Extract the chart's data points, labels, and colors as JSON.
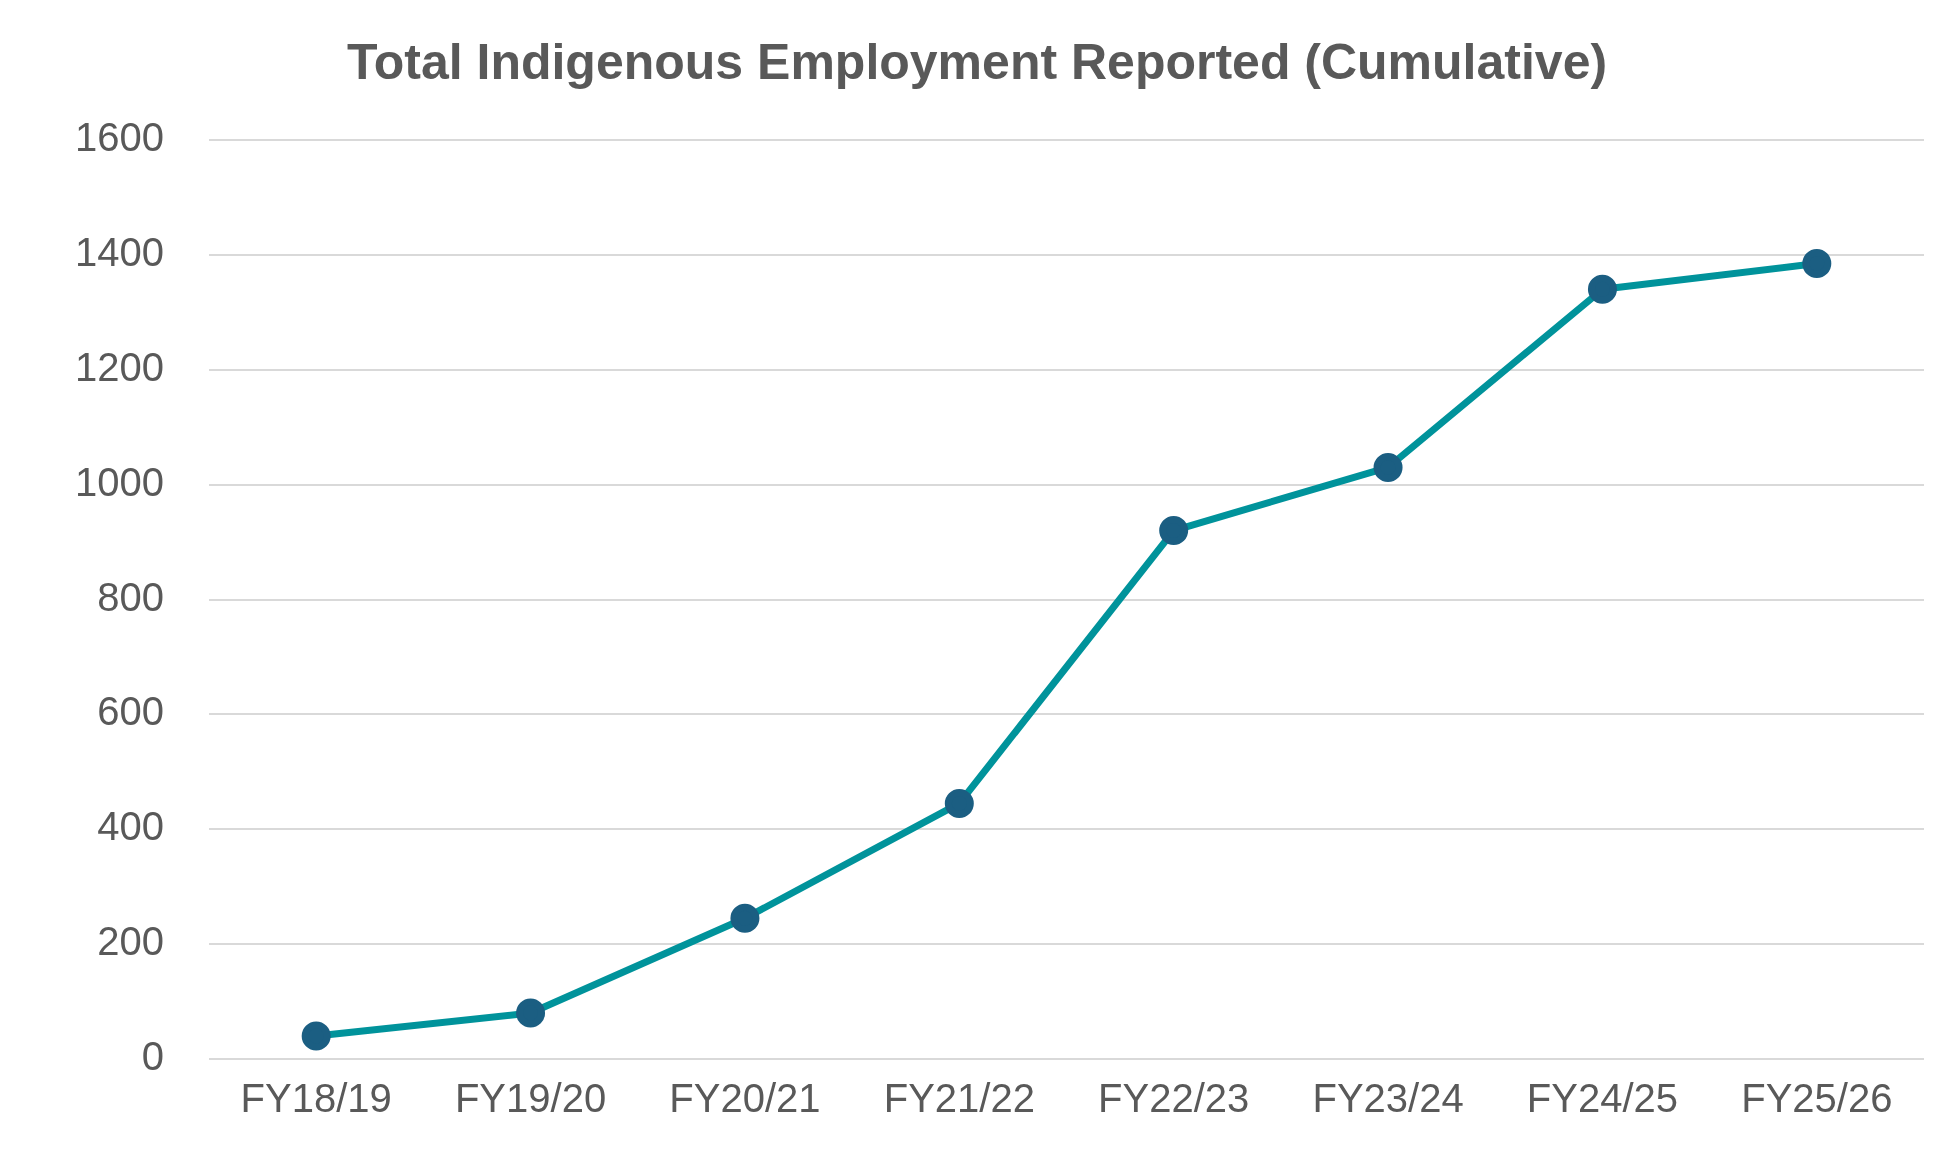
{
  "chart_data": {
    "type": "line",
    "title": "Total Indigenous Employment Reported (Cumulative)",
    "categories": [
      "FY18/19",
      "FY19/20",
      "FY20/21",
      "FY21/22",
      "FY22/23",
      "FY23/24",
      "FY24/25",
      "FY25/26"
    ],
    "series": [
      {
        "color": "#00939b",
        "colors": [
          "#1b5e82",
          "#1b5e82",
          "#1b5e82",
          "#1b5e82",
          "#1b5e82",
          "#1b5e82",
          "#1b5e82",
          "#1b5e82"
        ],
        "values": [
          40,
          80,
          245,
          445,
          920,
          1030,
          1340,
          1385
        ]
      }
    ],
    "ylim": [
      0,
      1600
    ],
    "yticks": [
      0,
      200,
      400,
      600,
      800,
      1000,
      1200,
      1400,
      1600
    ],
    "grid": "y",
    "legend": false,
    "marker": "circle",
    "line_style": "solid"
  }
}
